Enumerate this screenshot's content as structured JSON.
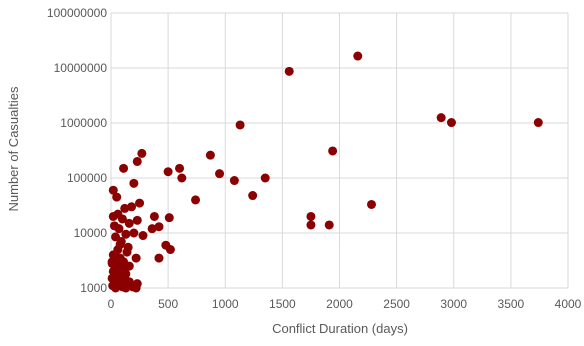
{
  "chart_data": {
    "type": "scatter",
    "title": "",
    "xlabel": "Conflict Duration (days)",
    "ylabel": "Number  of Casualties",
    "xlim": [
      0,
      4000
    ],
    "ylim": [
      1000,
      100000000
    ],
    "yscale": "log",
    "grid": true,
    "legend": "none",
    "marker_color": "#8B0000",
    "x_ticks": [
      "0",
      "500",
      "1000",
      "1500",
      "2000",
      "2500",
      "3000",
      "3500",
      "4000"
    ],
    "x_tick_values": [
      0,
      500,
      1000,
      1500,
      2000,
      2500,
      3000,
      3500,
      4000
    ],
    "y_ticks": [
      "1000",
      "10000",
      "100000",
      "1000000",
      "10000000",
      "100000000"
    ],
    "y_tick_values": [
      1000,
      10000,
      100000,
      1000000,
      10000000,
      100000000
    ],
    "points": [
      [
        2160,
        16500000
      ],
      [
        1560,
        8700000
      ],
      [
        2890,
        1250000
      ],
      [
        2980,
        1020000
      ],
      [
        3740,
        1020000
      ],
      [
        1130,
        920000
      ],
      [
        1940,
        310000
      ],
      [
        270,
        280000
      ],
      [
        230,
        200000
      ],
      [
        870,
        260000
      ],
      [
        110,
        150000
      ],
      [
        600,
        150000
      ],
      [
        500,
        130000
      ],
      [
        620,
        100000
      ],
      [
        950,
        120000
      ],
      [
        1350,
        100000
      ],
      [
        1080,
        90000
      ],
      [
        200,
        80000
      ],
      [
        20,
        60000
      ],
      [
        50,
        45000
      ],
      [
        1240,
        48000
      ],
      [
        740,
        40000
      ],
      [
        2280,
        33000
      ],
      [
        250,
        35000
      ],
      [
        180,
        30000
      ],
      [
        120,
        28000
      ],
      [
        60,
        22000
      ],
      [
        1750,
        20000
      ],
      [
        510,
        19000
      ],
      [
        380,
        20000
      ],
      [
        20,
        20000
      ],
      [
        100,
        18000
      ],
      [
        230,
        17000
      ],
      [
        30,
        13500
      ],
      [
        1750,
        14000
      ],
      [
        1910,
        14000
      ],
      [
        420,
        13000
      ],
      [
        160,
        15000
      ],
      [
        360,
        12000
      ],
      [
        70,
        12000
      ],
      [
        280,
        9000
      ],
      [
        200,
        10000
      ],
      [
        130,
        9500
      ],
      [
        40,
        8500
      ],
      [
        90,
        7000
      ],
      [
        480,
        6000
      ],
      [
        520,
        5000
      ],
      [
        150,
        5500
      ],
      [
        60,
        5000
      ],
      [
        20,
        4000
      ],
      [
        80,
        3500
      ],
      [
        220,
        3500
      ],
      [
        420,
        3500
      ],
      [
        10,
        3000
      ],
      [
        110,
        3000
      ],
      [
        160,
        2500
      ],
      [
        50,
        2200
      ],
      [
        20,
        2000
      ],
      [
        90,
        2000
      ],
      [
        130,
        1800
      ],
      [
        40,
        1600
      ],
      [
        10,
        1500
      ],
      [
        70,
        1500
      ],
      [
        110,
        1400
      ],
      [
        30,
        1300
      ],
      [
        160,
        1300
      ],
      [
        230,
        1200
      ],
      [
        60,
        1100
      ],
      [
        15,
        1100
      ],
      [
        100,
        1050
      ],
      [
        190,
        1050
      ],
      [
        220,
        1000
      ],
      [
        40,
        1000
      ],
      [
        130,
        1000
      ],
      [
        10,
        2800
      ],
      [
        50,
        2800
      ],
      [
        100,
        2300
      ],
      [
        30,
        3800
      ],
      [
        140,
        4500
      ],
      [
        80,
        6200
      ]
    ]
  }
}
